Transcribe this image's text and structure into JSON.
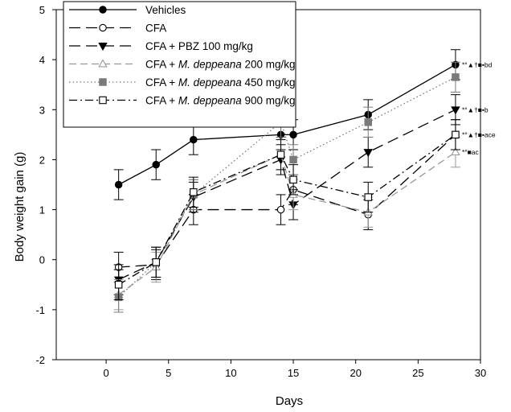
{
  "chart_data": {
    "type": "line",
    "title": "",
    "xlabel": "Days",
    "ylabel": "Body weight gain (g)",
    "xlim": [
      -4,
      30
    ],
    "ylim": [
      -2,
      5
    ],
    "xticks": [
      0,
      5,
      10,
      15,
      20,
      25,
      30
    ],
    "yticks": [
      -2,
      -1,
      0,
      1,
      2,
      3,
      4,
      5
    ],
    "grid": false,
    "legend_position": "top-left",
    "x": [
      1,
      4,
      7,
      14,
      15,
      21,
      28
    ],
    "series": [
      {
        "name": "Vehicles",
        "x": [
          1,
          4,
          7,
          14,
          15,
          21,
          28
        ],
        "values": [
          1.5,
          1.9,
          2.4,
          2.5,
          2.5,
          2.9,
          3.9
        ],
        "errors": [
          0.3,
          0.3,
          0.3,
          0.3,
          0.3,
          0.3,
          0.3
        ],
        "marker": "filled-circle",
        "linestyle": "solid",
        "color": "#000000",
        "annotation": "*°▲†■•bd"
      },
      {
        "name": "CFA",
        "x": [
          1,
          4,
          7,
          14,
          15,
          21,
          28
        ],
        "values": [
          -0.15,
          -0.1,
          1.0,
          1.0,
          1.4,
          0.9,
          2.5
        ],
        "errors": [
          0.3,
          0.3,
          0.3,
          0.3,
          0.3,
          0.3,
          0.3
        ],
        "marker": "open-circle",
        "linestyle": "longdash",
        "color": "#000000",
        "annotation": ""
      },
      {
        "name": "CFA + PBZ 100 mg/kg",
        "x": [
          1,
          4,
          7,
          14,
          15,
          21,
          28
        ],
        "values": [
          -0.4,
          -0.05,
          1.25,
          2.0,
          1.1,
          2.15,
          3.0
        ],
        "errors": [
          0.3,
          0.3,
          0.3,
          0.3,
          0.3,
          0.3,
          0.3
        ],
        "marker": "filled-triangle-down",
        "linestyle": "longdash",
        "color": "#000000",
        "annotation": "*°▲†■•b"
      },
      {
        "name": "CFA + M. deppeana 200 mg/kg",
        "x": [
          1,
          4,
          7,
          14,
          15,
          21,
          28
        ],
        "values": [
          -0.7,
          -0.15,
          1.3,
          2.1,
          1.3,
          0.95,
          2.15
        ],
        "errors": [
          0.3,
          0.3,
          0.3,
          0.3,
          0.3,
          0.3,
          0.3
        ],
        "marker": "open-triangle-up",
        "linestyle": "dash",
        "color": "#999999",
        "annotation": "*°■ac"
      },
      {
        "name": "CFA + M. deppeana 450 mg/kg",
        "x": [
          1,
          4,
          7,
          14,
          15,
          21,
          28
        ],
        "values": [
          -0.75,
          -0.05,
          1.3,
          2.75,
          2.0,
          2.75,
          3.65
        ],
        "errors": [
          0.3,
          0.3,
          0.3,
          0.3,
          0.3,
          0.3,
          0.3
        ],
        "marker": "filled-square",
        "linestyle": "dotted",
        "color": "#7a7a7a",
        "annotation": ""
      },
      {
        "name": "CFA + M. deppeana 900 mg/kg",
        "x": [
          1,
          4,
          7,
          14,
          15,
          21,
          28
        ],
        "values": [
          -0.5,
          -0.05,
          1.35,
          2.1,
          1.6,
          1.25,
          2.5
        ],
        "errors": [
          0.3,
          0.3,
          0.3,
          0.3,
          0.3,
          0.3,
          0.3
        ],
        "marker": "open-square",
        "linestyle": "dashdot",
        "color": "#000000",
        "annotation": "*°▲†■•ace"
      }
    ],
    "legend": [
      {
        "prefix": "Vehicles",
        "italic": "",
        "suffix": ""
      },
      {
        "prefix": "CFA",
        "italic": "",
        "suffix": ""
      },
      {
        "prefix": "CFA + PBZ 100 mg/kg",
        "italic": "",
        "suffix": ""
      },
      {
        "prefix": "CFA + ",
        "italic": "M. deppeana",
        "suffix": " 200 mg/kg"
      },
      {
        "prefix": "CFA + ",
        "italic": "M. deppeana",
        "suffix": " 450 mg/kg"
      },
      {
        "prefix": "CFA + ",
        "italic": "M. deppeana",
        "suffix": " 900 mg/kg"
      }
    ]
  }
}
